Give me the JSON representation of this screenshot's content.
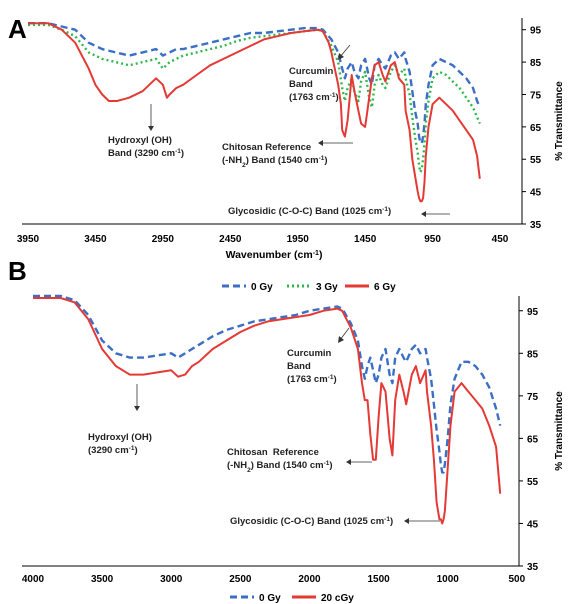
{
  "colors": {
    "gy0": "#3b6fc6",
    "gy3": "#2eb84b",
    "gy6": "#e53935",
    "gy20c": "#e53935",
    "axis": "#000000",
    "annotation": "#222222"
  },
  "chart_data": [
    {
      "type": "line",
      "panel_label": "A",
      "xlabel": "Wavenumber (cm-1)",
      "ylabel": "% Transmittance",
      "xlim": [
        3950,
        450
      ],
      "ylim": [
        35,
        98
      ],
      "x_reversed": true,
      "xticks": [
        "3950",
        "3450",
        "2950",
        "2450",
        "1950",
        "1450",
        "950",
        "450"
      ],
      "yticks": [
        "35",
        "45",
        "55",
        "65",
        "75",
        "85",
        "95"
      ],
      "legend_position": "bottom-center",
      "legend": [
        "0 Gy",
        "3 Gy",
        "6 Gy"
      ],
      "series": [
        {
          "name": "0 Gy",
          "style": "dashed",
          "x": [
            3950,
            3800,
            3700,
            3600,
            3500,
            3400,
            3300,
            3200,
            3100,
            3000,
            2950,
            2900,
            2850,
            2800,
            2700,
            2600,
            2500,
            2400,
            2300,
            2200,
            2100,
            2000,
            1900,
            1800,
            1763,
            1700,
            1650,
            1620,
            1600,
            1580,
            1550,
            1530,
            1500,
            1480,
            1450,
            1420,
            1400,
            1380,
            1350,
            1320,
            1300,
            1260,
            1230,
            1200,
            1160,
            1150,
            1120,
            1100,
            1080,
            1060,
            1050,
            1040,
            1030,
            1020,
            1010,
            1000,
            980,
            950,
            900,
            850,
            800,
            750,
            700,
            650,
            620,
            600
          ],
          "y": [
            97,
            97,
            96,
            95,
            91,
            89,
            88,
            87,
            88,
            89,
            87,
            88,
            89,
            89,
            90,
            91,
            92,
            93,
            94,
            94,
            94.5,
            95,
            95.5,
            95.5,
            95,
            92,
            88,
            83,
            80,
            83,
            85,
            82,
            80,
            84,
            86,
            80,
            78,
            84,
            86,
            84,
            83,
            87,
            88,
            86,
            88,
            86,
            82,
            76,
            70,
            66,
            62,
            60,
            60,
            62,
            66,
            72,
            78,
            84,
            86,
            85,
            84,
            82,
            80,
            77,
            73,
            71
          ]
        },
        {
          "name": "3 Gy",
          "style": "dotted",
          "x": [
            3950,
            3800,
            3700,
            3600,
            3500,
            3400,
            3300,
            3200,
            3100,
            3000,
            2950,
            2900,
            2850,
            2800,
            2700,
            2600,
            2500,
            2400,
            2300,
            2200,
            2100,
            2000,
            1900,
            1800,
            1763,
            1700,
            1650,
            1620,
            1600,
            1580,
            1550,
            1530,
            1500,
            1480,
            1450,
            1420,
            1400,
            1380,
            1350,
            1320,
            1300,
            1260,
            1230,
            1200,
            1160,
            1150,
            1120,
            1100,
            1080,
            1060,
            1050,
            1040,
            1030,
            1020,
            1010,
            1000,
            980,
            950,
            900,
            850,
            800,
            750,
            700,
            650,
            620,
            600
          ],
          "y": [
            96.5,
            96.5,
            95,
            93,
            88,
            86,
            85,
            84,
            85,
            86,
            83,
            85,
            86,
            87,
            88,
            89,
            90,
            91.5,
            92.5,
            93,
            93.5,
            94,
            94.5,
            95,
            94.5,
            90,
            85,
            77,
            73,
            77,
            80,
            76,
            73,
            79,
            82,
            74,
            71,
            78,
            81,
            78,
            77,
            82,
            84,
            81,
            83,
            80,
            75,
            68,
            62,
            57,
            53,
            51,
            52,
            55,
            60,
            66,
            73,
            80,
            82,
            81,
            79,
            77,
            74,
            71,
            68,
            66
          ]
        },
        {
          "name": "6 Gy",
          "style": "solid",
          "x": [
            3950,
            3800,
            3700,
            3600,
            3500,
            3450,
            3400,
            3350,
            3290,
            3200,
            3100,
            3000,
            2950,
            2920,
            2900,
            2850,
            2800,
            2700,
            2600,
            2500,
            2400,
            2300,
            2200,
            2100,
            2000,
            1900,
            1800,
            1763,
            1720,
            1700,
            1680,
            1650,
            1630,
            1620,
            1600,
            1580,
            1560,
            1550,
            1530,
            1500,
            1480,
            1450,
            1440,
            1420,
            1400,
            1380,
            1350,
            1320,
            1300,
            1260,
            1230,
            1200,
            1160,
            1150,
            1120,
            1100,
            1080,
            1060,
            1050,
            1040,
            1030,
            1020,
            1010,
            1000,
            980,
            950,
            900,
            850,
            800,
            750,
            700,
            650,
            620,
            600
          ],
          "y": [
            97,
            97,
            95,
            91,
            83,
            78,
            75,
            73,
            73,
            74,
            76,
            80,
            78,
            74,
            75,
            77,
            78,
            81,
            84,
            86,
            88,
            90,
            92,
            93,
            94,
            94.5,
            95,
            94.5,
            91,
            88,
            84,
            78,
            72,
            64,
            62,
            67,
            76,
            81,
            76,
            70,
            66,
            65,
            68,
            74,
            80,
            84,
            85,
            81,
            79,
            84,
            85,
            80,
            78,
            70,
            64,
            55,
            50,
            45,
            43,
            42,
            42,
            43,
            48,
            56,
            65,
            72,
            74,
            72,
            70,
            67,
            64,
            61,
            56,
            49
          ]
        }
      ],
      "annotations": [
        {
          "text": "Curcumin",
          "x": 1763
        },
        {
          "text": "Band",
          "x": 1763
        },
        {
          "text": "(1763 cm-1)",
          "x": 1763
        },
        {
          "text": "Hydroxyl (OH)",
          "x": 3290
        },
        {
          "text": "Band (3290 cm-1)",
          "x": 3290
        },
        {
          "text": "Chitosan Reference",
          "x": 1540
        },
        {
          "text": "(-NH2) Band (1540 cm-1)",
          "x": 1540
        },
        {
          "text": "Glycosidic (C-O-C) Band (1025 cm-1)",
          "x": 1025
        }
      ]
    },
    {
      "type": "line",
      "panel_label": "B",
      "xlabel": "",
      "ylabel": "% Transmittance",
      "xlim": [
        4000,
        600
      ],
      "ylim": [
        35,
        98
      ],
      "x_reversed": true,
      "xticks": [
        "4000",
        "3500",
        "3000",
        "2500",
        "2000",
        "1500",
        "1000",
        "500"
      ],
      "yticks": [
        "35",
        "45",
        "55",
        "65",
        "75",
        "85",
        "95"
      ],
      "legend_position": "bottom-center",
      "legend": [
        "0 Gy",
        "20 cGy"
      ],
      "series": [
        {
          "name": "0 Gy",
          "style": "dashed",
          "x": [
            4000,
            3800,
            3700,
            3600,
            3500,
            3400,
            3300,
            3200,
            3100,
            3000,
            2950,
            2900,
            2850,
            2800,
            2700,
            2600,
            2500,
            2400,
            2300,
            2200,
            2100,
            2000,
            1900,
            1800,
            1763,
            1700,
            1650,
            1620,
            1600,
            1580,
            1560,
            1540,
            1520,
            1500,
            1480,
            1450,
            1420,
            1400,
            1380,
            1350,
            1320,
            1300,
            1260,
            1230,
            1200,
            1160,
            1150,
            1120,
            1100,
            1080,
            1060,
            1050,
            1040,
            1030,
            1020,
            1000,
            980,
            950,
            900,
            850,
            800,
            750,
            700,
            650,
            620
          ],
          "y": [
            98.5,
            98.5,
            97.5,
            94,
            88,
            85,
            84,
            84,
            84.5,
            85,
            84,
            85,
            86,
            87,
            89,
            90.5,
            91.5,
            92.5,
            93,
            93.5,
            94,
            95,
            95.5,
            96,
            95.5,
            92,
            88,
            82,
            79,
            82,
            84,
            81,
            78,
            80,
            84,
            86,
            80,
            78,
            84,
            86,
            84,
            83,
            86,
            87,
            85,
            86,
            84,
            79,
            73,
            67,
            62,
            59,
            57,
            57,
            59,
            65,
            73,
            79,
            83,
            83,
            82,
            80,
            77,
            72,
            68
          ]
        },
        {
          "name": "20 cGy",
          "style": "solid",
          "x": [
            4000,
            3800,
            3700,
            3600,
            3500,
            3400,
            3300,
            3200,
            3100,
            3000,
            2950,
            2900,
            2850,
            2800,
            2700,
            2600,
            2500,
            2400,
            2300,
            2200,
            2100,
            2000,
            1900,
            1800,
            1763,
            1700,
            1650,
            1620,
            1600,
            1580,
            1560,
            1540,
            1520,
            1500,
            1480,
            1450,
            1420,
            1400,
            1380,
            1350,
            1320,
            1300,
            1260,
            1230,
            1200,
            1160,
            1150,
            1120,
            1100,
            1080,
            1060,
            1050,
            1040,
            1030,
            1020,
            1000,
            980,
            950,
            900,
            850,
            800,
            750,
            700,
            650,
            620
          ],
          "y": [
            98,
            98,
            97,
            93,
            86,
            82,
            80,
            80,
            80.5,
            81,
            79.5,
            80,
            82,
            83,
            86,
            88,
            90,
            91.5,
            92.5,
            93,
            93.5,
            94,
            95,
            95.5,
            95,
            91,
            86,
            78,
            74,
            74,
            66,
            60,
            60,
            70,
            78,
            76,
            65,
            61,
            74,
            80,
            76,
            73,
            80,
            82,
            78,
            81,
            76,
            68,
            60,
            50,
            46,
            46,
            45,
            46,
            48,
            58,
            68,
            76,
            78,
            76,
            74,
            72,
            68,
            63,
            52
          ]
        }
      ],
      "annotations": [
        {
          "text": "Curcumin",
          "x": 1763
        },
        {
          "text": "Band",
          "x": 1763
        },
        {
          "text": "(1763 cm-1)",
          "x": 1763
        },
        {
          "text": "Hydroxyl (OH)",
          "x": 3290
        },
        {
          "text": "(3290 cm-1)",
          "x": 3290
        },
        {
          "text": "Chitosan  Reference",
          "x": 1540
        },
        {
          "text": "(-NH2) Band (1540 cm-1)",
          "x": 1540
        },
        {
          "text": "Glycosidic (C-O-C) Band (1025 cm-1)",
          "x": 1025
        }
      ]
    }
  ]
}
